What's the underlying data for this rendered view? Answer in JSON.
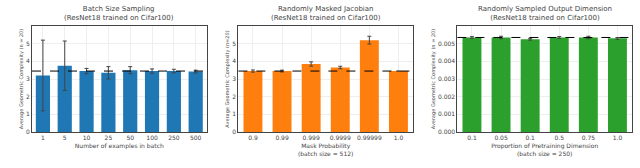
{
  "chart_data": [
    {
      "type": "bar",
      "title": "Batch Size Sampling",
      "subtitle": "(ResNet18 trained on Cifar100)",
      "xlabel": "Number of examples in batch",
      "ylabel": "Average Geometric Complexity (n = 20)",
      "categories": [
        "1",
        "5",
        "10",
        "25",
        "50",
        "100",
        "250",
        "500"
      ],
      "values": [
        3.2,
        3.75,
        3.45,
        3.35,
        3.5,
        3.45,
        3.45,
        3.42
      ],
      "errors": [
        2.0,
        1.4,
        0.15,
        0.35,
        0.2,
        0.12,
        0.1,
        0.08
      ],
      "reference_line": 3.45,
      "ylim": [
        0,
        6
      ],
      "yticks": [
        0,
        1,
        2,
        3,
        4,
        5
      ],
      "grid": true
    },
    {
      "type": "bar",
      "title": "Randomly Masked Jacobian",
      "subtitle": "(ResNet18 trained on Cifar100)",
      "xlabel": "Mask Probability\n(batch size = 512)",
      "ylabel": "Average Geometric Complexity (n=20)",
      "categories": [
        "0.9",
        "0.99",
        "0.999",
        "0.9999",
        "0.99999",
        "1.0"
      ],
      "values": [
        3.45,
        3.45,
        3.85,
        3.65,
        5.2,
        3.45
      ],
      "errors": [
        0.06,
        0.05,
        0.12,
        0.07,
        0.22,
        0.0
      ],
      "reference_line": 3.45,
      "ylim": [
        0,
        6
      ],
      "yticks": [
        0,
        1,
        2,
        3,
        4,
        5
      ],
      "grid": true
    },
    {
      "type": "bar",
      "title": "Randomly Sampled Output Dimension",
      "subtitle": "(ResNet18 trained on Cifar100)",
      "xlabel": "Proportion of Pretraining Dimension\n(batch size = 250)",
      "ylabel": "Average Geometric Complexity (n = 20)",
      "categories": [
        "0.1",
        "0.05",
        "0.1",
        "0.5",
        "0.75",
        "1.0"
      ],
      "values": [
        0.00535,
        0.00535,
        0.00525,
        0.00535,
        0.00535,
        0.0053
      ],
      "errors": [
        5e-05,
        7e-05,
        5e-05,
        5e-05,
        7e-05,
        5e-05
      ],
      "reference_line": 0.00535,
      "ylim": [
        0.0,
        0.006
      ],
      "yticks": [
        {
          "value": 0.0,
          "label": "0.000"
        },
        {
          "value": 0.001,
          "label": "0.001"
        },
        {
          "value": 0.002,
          "label": "0.002"
        },
        {
          "value": 0.003,
          "label": "0.003"
        },
        {
          "value": 0.004,
          "label": "0.004"
        },
        {
          "value": 0.005,
          "label": "0.005"
        }
      ],
      "grid": true
    }
  ]
}
